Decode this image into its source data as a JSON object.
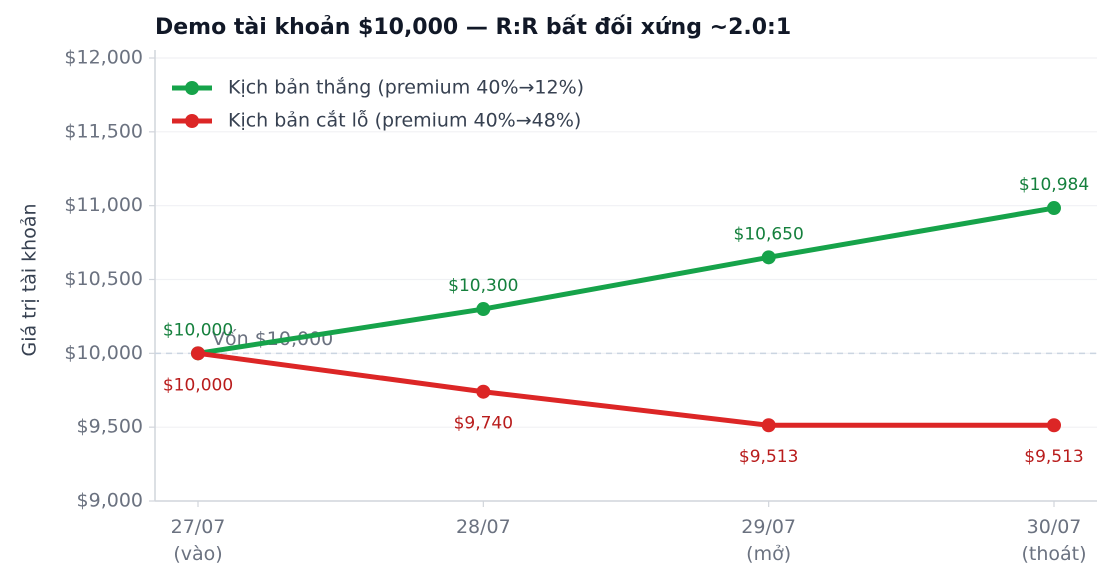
{
  "chart_data": {
    "type": "line",
    "title": "Demo tài khoản $10,000 — R:R bất đối xứng ~2.0:1",
    "y_label": "Giá trị tài khoản",
    "categories": [
      "27/07\n(vào)",
      "28/07",
      "29/07\n(mở)",
      "30/07\n(thoát)"
    ],
    "series": [
      {
        "name": "Kịch bản thắng (premium 40%→12%)",
        "color": "#16a34a",
        "label_color": "#15803d",
        "label_side": "above",
        "values": [
          10000,
          10300,
          10650,
          10984
        ],
        "value_labels": [
          "$10,000",
          "$10,300",
          "$10,650",
          "$10,984"
        ]
      },
      {
        "name": "Kịch bản cắt lỗ (premium 40%→48%)",
        "color": "#dc2626",
        "label_color": "#b91c1c",
        "label_side": "below",
        "values": [
          10000,
          9740,
          9513,
          9513
        ],
        "value_labels": [
          "$10,000",
          "$9,740",
          "$9,513",
          "$9,513"
        ]
      }
    ],
    "reference": {
      "value": 10000,
      "label": "Vốn $10,000"
    },
    "ylim": [
      9000,
      12000
    ],
    "yticks": [
      {
        "value": 9000,
        "label": "$9,000"
      },
      {
        "value": 9500,
        "label": "$9,500"
      },
      {
        "value": 10000,
        "label": "$10,000"
      },
      {
        "value": 10500,
        "label": "$10,500"
      },
      {
        "value": 11000,
        "label": "$11,000"
      },
      {
        "value": 11500,
        "label": "$11,500"
      },
      {
        "value": 12000,
        "label": "$12,000"
      }
    ],
    "grid": true,
    "legend": "upper-left"
  }
}
